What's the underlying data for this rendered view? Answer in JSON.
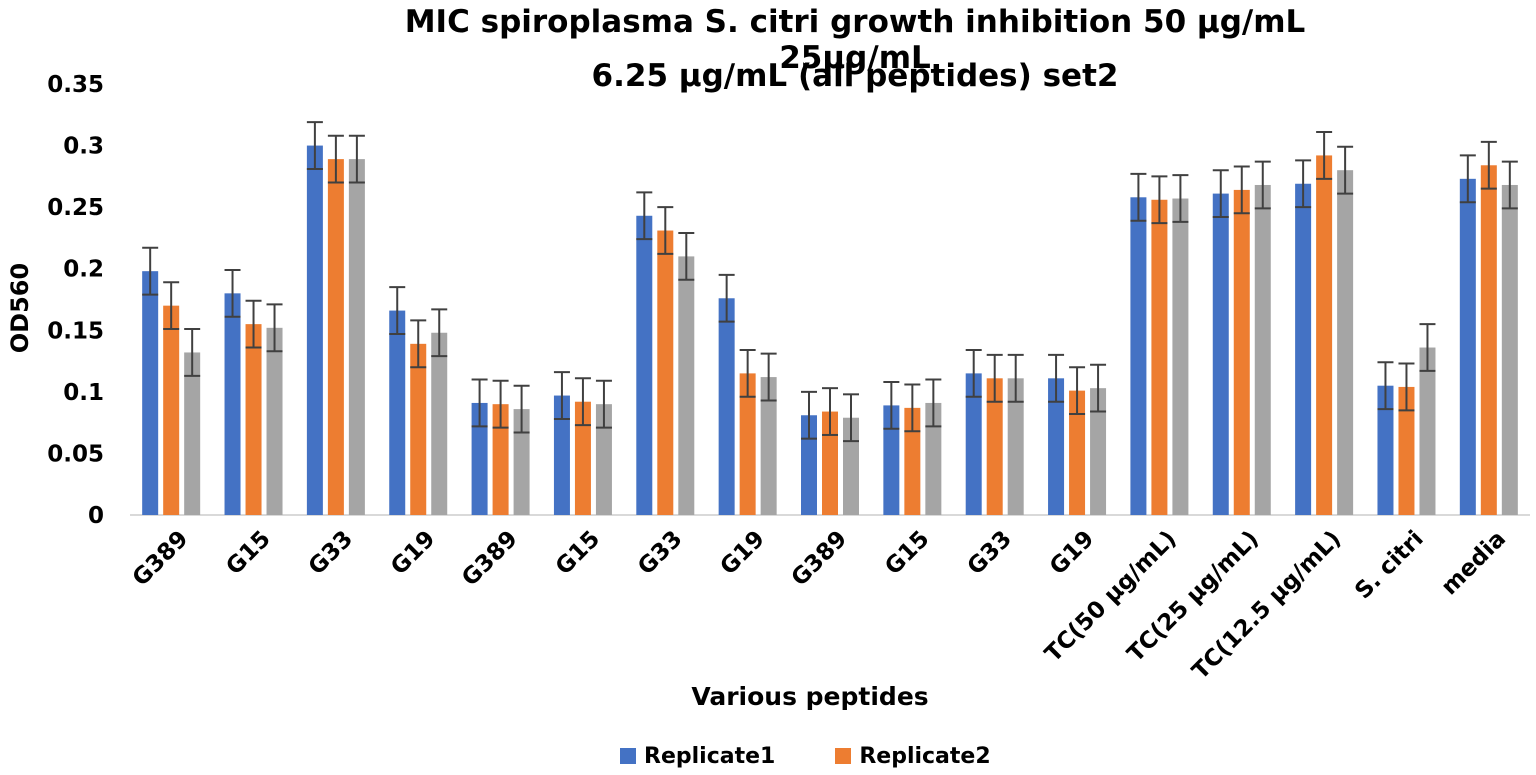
{
  "colors": {
    "replicate1": "#4472C4",
    "replicate2": "#ED7D31",
    "replicate3": "#A5A5A5",
    "errorbar": "#404040",
    "axis": "#d9d9d9"
  },
  "legend": {
    "items": [
      {
        "label": "Replicate1",
        "color": "#4472C4"
      },
      {
        "label": "Replicate2",
        "color": "#ED7D31"
      }
    ]
  },
  "chart_data": {
    "type": "bar",
    "title": "MIC spiroplasma S. citri growth inhibition 50 µg/mL 25µg/mL 6.25 µg/mL (all peptides) set2",
    "title_lines": [
      "MIC spiroplasma S. citri growth inhibition 50 µg/mL 25µg/mL",
      "6.25 µg/mL (all peptides) set2"
    ],
    "xlabel": "Various peptides",
    "ylabel": "OD560",
    "ylim": [
      0,
      0.35
    ],
    "yticks": [
      "0",
      "0.05",
      "0.1",
      "0.15",
      "0.2",
      "0.25",
      "0.3",
      "0.35"
    ],
    "grid": false,
    "legend_position": "bottom",
    "categories": [
      "G389",
      "G15",
      "G33",
      "G19",
      "G389",
      "G15",
      "G33",
      "G19",
      "G389",
      "G15",
      "G33",
      "G19",
      "TC(50 µg/mL)",
      "TC(25 µg/mL)",
      "TC(12.5 µg/mL)",
      "S. citri",
      "media"
    ],
    "series": [
      {
        "name": "Replicate1",
        "values": [
          0.198,
          0.18,
          0.3,
          0.166,
          0.091,
          0.097,
          0.243,
          0.176,
          0.081,
          0.089,
          0.115,
          0.111,
          0.258,
          0.261,
          0.269,
          0.105,
          0.273
        ]
      },
      {
        "name": "Replicate2",
        "values": [
          0.17,
          0.155,
          0.289,
          0.139,
          0.09,
          0.092,
          0.231,
          0.115,
          0.084,
          0.087,
          0.111,
          0.101,
          0.256,
          0.264,
          0.292,
          0.104,
          0.284
        ]
      },
      {
        "name": "",
        "values": [
          0.132,
          0.152,
          0.289,
          0.148,
          0.086,
          0.09,
          0.21,
          0.112,
          0.079,
          0.091,
          0.111,
          0.103,
          0.257,
          0.268,
          0.28,
          0.136,
          0.268
        ]
      }
    ],
    "error": 0.019
  }
}
